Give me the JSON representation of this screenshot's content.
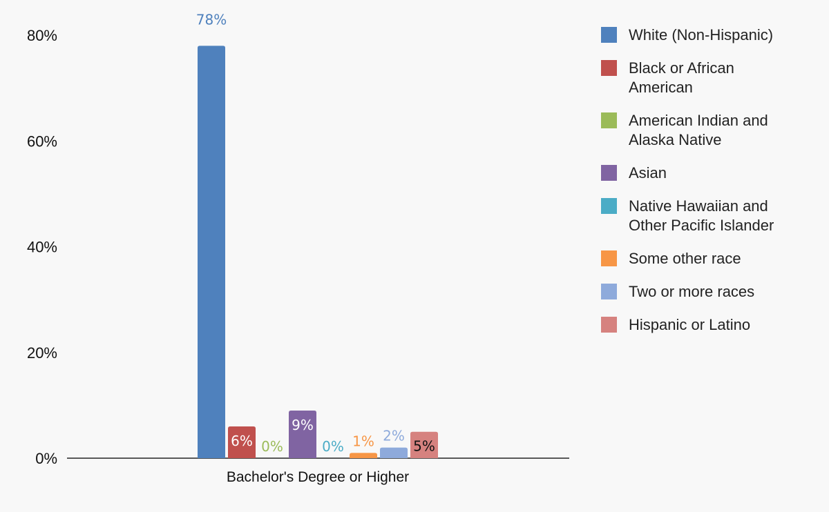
{
  "chart_data": {
    "type": "bar",
    "categories": [
      "Bachelor's Degree or Higher"
    ],
    "series": [
      {
        "name": "White (Non-Hispanic)",
        "values": [
          78
        ],
        "label": "78%",
        "color": "#4f81bd"
      },
      {
        "name": "Black or African American",
        "values": [
          6
        ],
        "label": "6%",
        "color": "#c0504d"
      },
      {
        "name": "American Indian and Alaska Native",
        "values": [
          0
        ],
        "label": "0%",
        "color": "#9bbb59"
      },
      {
        "name": "Asian",
        "values": [
          9
        ],
        "label": "9%",
        "color": "#8064a2"
      },
      {
        "name": "Native Hawaiian and Other Pacific Islander",
        "values": [
          0
        ],
        "label": "0%",
        "color": "#4bacc6"
      },
      {
        "name": "Some other race",
        "values": [
          1
        ],
        "label": "1%",
        "color": "#f79646"
      },
      {
        "name": "Two or more races",
        "values": [
          2
        ],
        "label": "2%",
        "color": "#8eaadb"
      },
      {
        "name": "Hispanic or Latino",
        "values": [
          5
        ],
        "label": "5%",
        "color": "#d6827f"
      }
    ],
    "y_ticks": [
      "0%",
      "20%",
      "40%",
      "60%",
      "80%"
    ],
    "ylim": [
      0,
      80
    ],
    "grid": false,
    "legend_position": "right",
    "title": "",
    "xlabel": "",
    "ylabel": ""
  }
}
